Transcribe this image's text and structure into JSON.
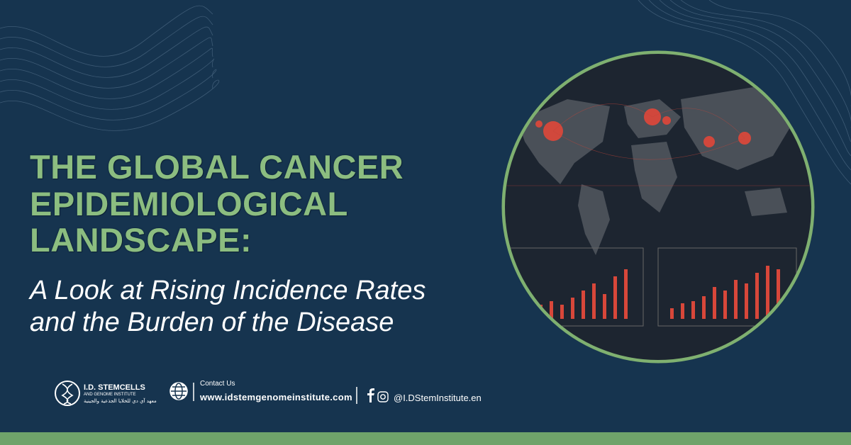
{
  "headline": {
    "lines": [
      "THE GLOBAL CANCER",
      "EPIDEMIOLOGICAL",
      "LANDSCAPE:"
    ]
  },
  "subheadline": {
    "lines": [
      "A Look at Rising Incidence Rates",
      "and the Burden of the Disease"
    ]
  },
  "logo": {
    "name": "I.D. STEMCELLS",
    "tagline": "AND GENOME INSTITUTE",
    "arabic": "معهد آي دي للخلايا الجذعية والجينية"
  },
  "contact": {
    "label": "Contact Us",
    "website": "www.idstemgenomeinstitute.com",
    "social_handle": "@I.DStemInstitute.en"
  }
}
